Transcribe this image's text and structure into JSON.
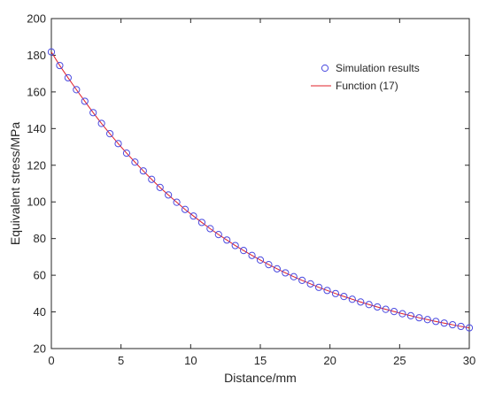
{
  "chart_data": {
    "type": "line",
    "xlabel": "Distance/mm",
    "ylabel": "Equivalent  stress/MPa",
    "xlim": [
      0,
      30
    ],
    "ylim": [
      20,
      200
    ],
    "x_ticks": [
      0,
      5,
      10,
      15,
      20,
      25,
      30
    ],
    "y_ticks": [
      20,
      40,
      60,
      80,
      100,
      120,
      140,
      160,
      180,
      200
    ],
    "grid": false,
    "legend_position": "top-right",
    "series": [
      {
        "name": "Simulation results",
        "style": "markers",
        "marker": "circle",
        "color": "#4a4ae0",
        "x": [
          0,
          0.6,
          1.2,
          1.8,
          2.4,
          3,
          3.6,
          4.2,
          4.8,
          5.4,
          6,
          6.6,
          7.2,
          7.8,
          8.4,
          9,
          9.6,
          10.2,
          10.8,
          11.4,
          12,
          12.6,
          13.2,
          13.8,
          14.4,
          15,
          15.6,
          16.2,
          16.8,
          17.4,
          18,
          18.6,
          19.2,
          19.8,
          20.4,
          21,
          21.6,
          22.2,
          22.8,
          23.4,
          24,
          24.6,
          25.2,
          25.8,
          26.4,
          27,
          27.6,
          28.2,
          28.8,
          29.4,
          30
        ],
        "y": [
          181.8,
          174.4,
          167.7,
          161.2,
          154.9,
          148.7,
          142.8,
          137.2,
          131.8,
          126.6,
          121.7,
          116.9,
          112.3,
          107.9,
          103.8,
          99.8,
          95.9,
          92.3,
          88.8,
          85.4,
          82.2,
          79.2,
          76.2,
          73.5,
          70.8,
          68.3,
          65.8,
          63.5,
          61.3,
          59.2,
          57.2,
          55.3,
          53.4,
          51.7,
          50,
          48.4,
          46.9,
          45.4,
          44,
          42.7,
          41.4,
          40.2,
          39,
          37.9,
          36.8,
          35.8,
          34.8,
          33.9,
          33,
          32.1,
          31.3
        ]
      },
      {
        "name": "Function (17)",
        "style": "line",
        "color": "#e0202a",
        "x": [
          0,
          0.6,
          1.2,
          1.8,
          2.4,
          3,
          3.6,
          4.2,
          4.8,
          5.4,
          6,
          6.6,
          7.2,
          7.8,
          8.4,
          9,
          9.6,
          10.2,
          10.8,
          11.4,
          12,
          12.6,
          13.2,
          13.8,
          14.4,
          15,
          15.6,
          16.2,
          16.8,
          17.4,
          18,
          18.6,
          19.2,
          19.8,
          20.4,
          21,
          21.6,
          22.2,
          22.8,
          23.4,
          24,
          24.6,
          25.2,
          25.8,
          26.4,
          27,
          27.6,
          28.2,
          28.8,
          29.4,
          30
        ],
        "y": [
          181.8,
          174.4,
          167.7,
          161.2,
          154.9,
          148.7,
          142.8,
          137.2,
          131.8,
          126.6,
          121.7,
          116.9,
          112.3,
          107.9,
          103.8,
          99.8,
          95.9,
          92.3,
          88.8,
          85.4,
          82.2,
          79.2,
          76.2,
          73.5,
          70.8,
          68.3,
          65.8,
          63.5,
          61.3,
          59.2,
          57.2,
          55.3,
          53.4,
          51.7,
          50,
          48.4,
          46.9,
          45.4,
          44,
          42.7,
          41.4,
          40.2,
          39,
          37.9,
          36.8,
          35.8,
          34.8,
          33.9,
          33,
          32.1,
          31.3
        ]
      }
    ]
  }
}
